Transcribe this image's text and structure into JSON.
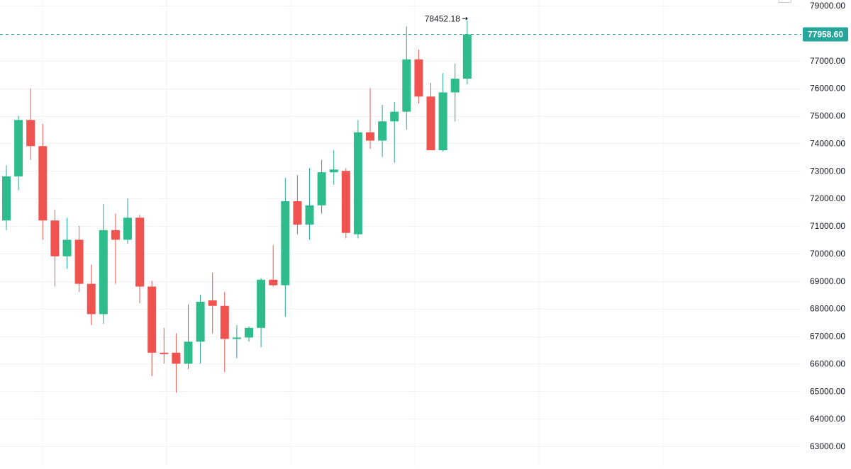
{
  "chart_data": {
    "type": "candlestick",
    "title": "",
    "xlabel": "",
    "ylabel": "",
    "ylim": [
      62700,
      79200
    ],
    "grid": true,
    "y_axis_position": "right",
    "colors": {
      "up": "#26a69a",
      "up_body": "#2fbc8d",
      "down": "#ef5350",
      "last_price": "#26a69a",
      "grid": "#f0f3fa"
    },
    "y_ticks": [
      {
        "value": 79000,
        "label": "79000.00"
      },
      {
        "value": 77000,
        "label": "77000.00"
      },
      {
        "value": 76000,
        "label": "76000.00"
      },
      {
        "value": 75000,
        "label": "75000.00"
      },
      {
        "value": 74000,
        "label": "74000.00"
      },
      {
        "value": 73000,
        "label": "73000.00"
      },
      {
        "value": 72000,
        "label": "72000.00"
      },
      {
        "value": 71000,
        "label": "71000.00"
      },
      {
        "value": 70000,
        "label": "70000.00"
      },
      {
        "value": 69000,
        "label": "69000.00"
      },
      {
        "value": 68000,
        "label": "68000.00"
      },
      {
        "value": 67000,
        "label": "67000.00"
      },
      {
        "value": 66000,
        "label": "66000.00"
      },
      {
        "value": 65000,
        "label": "65000.00"
      },
      {
        "value": 64000,
        "label": "64000.00"
      },
      {
        "value": 63000,
        "label": "63000.00"
      }
    ],
    "last_price": {
      "value": 77958.6,
      "label": "77958.60"
    },
    "high_marker": {
      "value": 78452.18,
      "label": "78452.18",
      "candle_index": 38
    },
    "candles": [
      {
        "o": 71200,
        "h": 73200,
        "l": 70850,
        "c": 72800
      },
      {
        "o": 72800,
        "h": 75000,
        "l": 72300,
        "c": 74850
      },
      {
        "o": 74850,
        "h": 76000,
        "l": 73400,
        "c": 73900
      },
      {
        "o": 73900,
        "h": 74700,
        "l": 70500,
        "c": 71200
      },
      {
        "o": 71200,
        "h": 71600,
        "l": 68800,
        "c": 69900
      },
      {
        "o": 69900,
        "h": 71300,
        "l": 69450,
        "c": 70500
      },
      {
        "o": 70500,
        "h": 71000,
        "l": 68600,
        "c": 68900
      },
      {
        "o": 68900,
        "h": 69600,
        "l": 67400,
        "c": 67800
      },
      {
        "o": 67800,
        "h": 71800,
        "l": 67450,
        "c": 70850
      },
      {
        "o": 70850,
        "h": 71450,
        "l": 68900,
        "c": 70500
      },
      {
        "o": 70500,
        "h": 72000,
        "l": 70350,
        "c": 71300
      },
      {
        "o": 71300,
        "h": 71400,
        "l": 68200,
        "c": 68800
      },
      {
        "o": 68800,
        "h": 69000,
        "l": 65550,
        "c": 66400
      },
      {
        "o": 66400,
        "h": 67300,
        "l": 66000,
        "c": 66350
      },
      {
        "o": 66400,
        "h": 67100,
        "l": 64950,
        "c": 66000
      },
      {
        "o": 66000,
        "h": 68150,
        "l": 65800,
        "c": 66800
      },
      {
        "o": 66800,
        "h": 68500,
        "l": 66000,
        "c": 68250
      },
      {
        "o": 68300,
        "h": 69300,
        "l": 67100,
        "c": 68100
      },
      {
        "o": 68100,
        "h": 68600,
        "l": 65700,
        "c": 66900
      },
      {
        "o": 66900,
        "h": 67400,
        "l": 66200,
        "c": 66950
      },
      {
        "o": 66950,
        "h": 67350,
        "l": 66800,
        "c": 67300
      },
      {
        "o": 67300,
        "h": 69100,
        "l": 66600,
        "c": 69050
      },
      {
        "o": 69050,
        "h": 70300,
        "l": 68800,
        "c": 68850
      },
      {
        "o": 68850,
        "h": 72750,
        "l": 67700,
        "c": 71900
      },
      {
        "o": 71900,
        "h": 72850,
        "l": 70700,
        "c": 71050
      },
      {
        "o": 71050,
        "h": 73100,
        "l": 70500,
        "c": 71750
      },
      {
        "o": 71750,
        "h": 73400,
        "l": 71450,
        "c": 72950
      },
      {
        "o": 72950,
        "h": 73750,
        "l": 72500,
        "c": 73050
      },
      {
        "o": 73000,
        "h": 73100,
        "l": 70550,
        "c": 70750
      },
      {
        "o": 70700,
        "h": 74850,
        "l": 70550,
        "c": 74400
      },
      {
        "o": 74400,
        "h": 76000,
        "l": 73800,
        "c": 74100
      },
      {
        "o": 74100,
        "h": 75400,
        "l": 73500,
        "c": 74800
      },
      {
        "o": 74800,
        "h": 75500,
        "l": 73300,
        "c": 75150
      },
      {
        "o": 75150,
        "h": 78250,
        "l": 74500,
        "c": 77050
      },
      {
        "o": 77050,
        "h": 77400,
        "l": 75450,
        "c": 75700
      },
      {
        "o": 75700,
        "h": 76200,
        "l": 73750,
        "c": 73750
      },
      {
        "o": 73750,
        "h": 76550,
        "l": 73700,
        "c": 75850
      },
      {
        "o": 75850,
        "h": 76900,
        "l": 74800,
        "c": 76350
      },
      {
        "o": 76350,
        "h": 78452.18,
        "l": 76150,
        "c": 77958.6
      }
    ]
  }
}
